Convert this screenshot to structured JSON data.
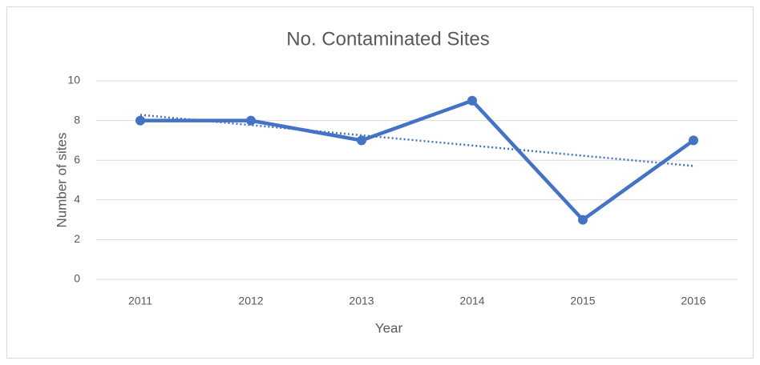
{
  "chart_data": {
    "type": "line",
    "title": "No. Contaminated Sites",
    "x_label": "Year",
    "y_label": "Number of sites",
    "categories": [
      "2011",
      "2012",
      "2013",
      "2014",
      "2015",
      "2016"
    ],
    "series": [
      {
        "name": "No. Contaminated Sites",
        "color": "#4472c4",
        "values": [
          8,
          8,
          7,
          9,
          3,
          7
        ]
      }
    ],
    "ylim": [
      0,
      10
    ],
    "yticks": [
      0,
      2,
      4,
      6,
      8,
      10
    ],
    "grid": true,
    "trendline": "linear",
    "legend": false
  }
}
